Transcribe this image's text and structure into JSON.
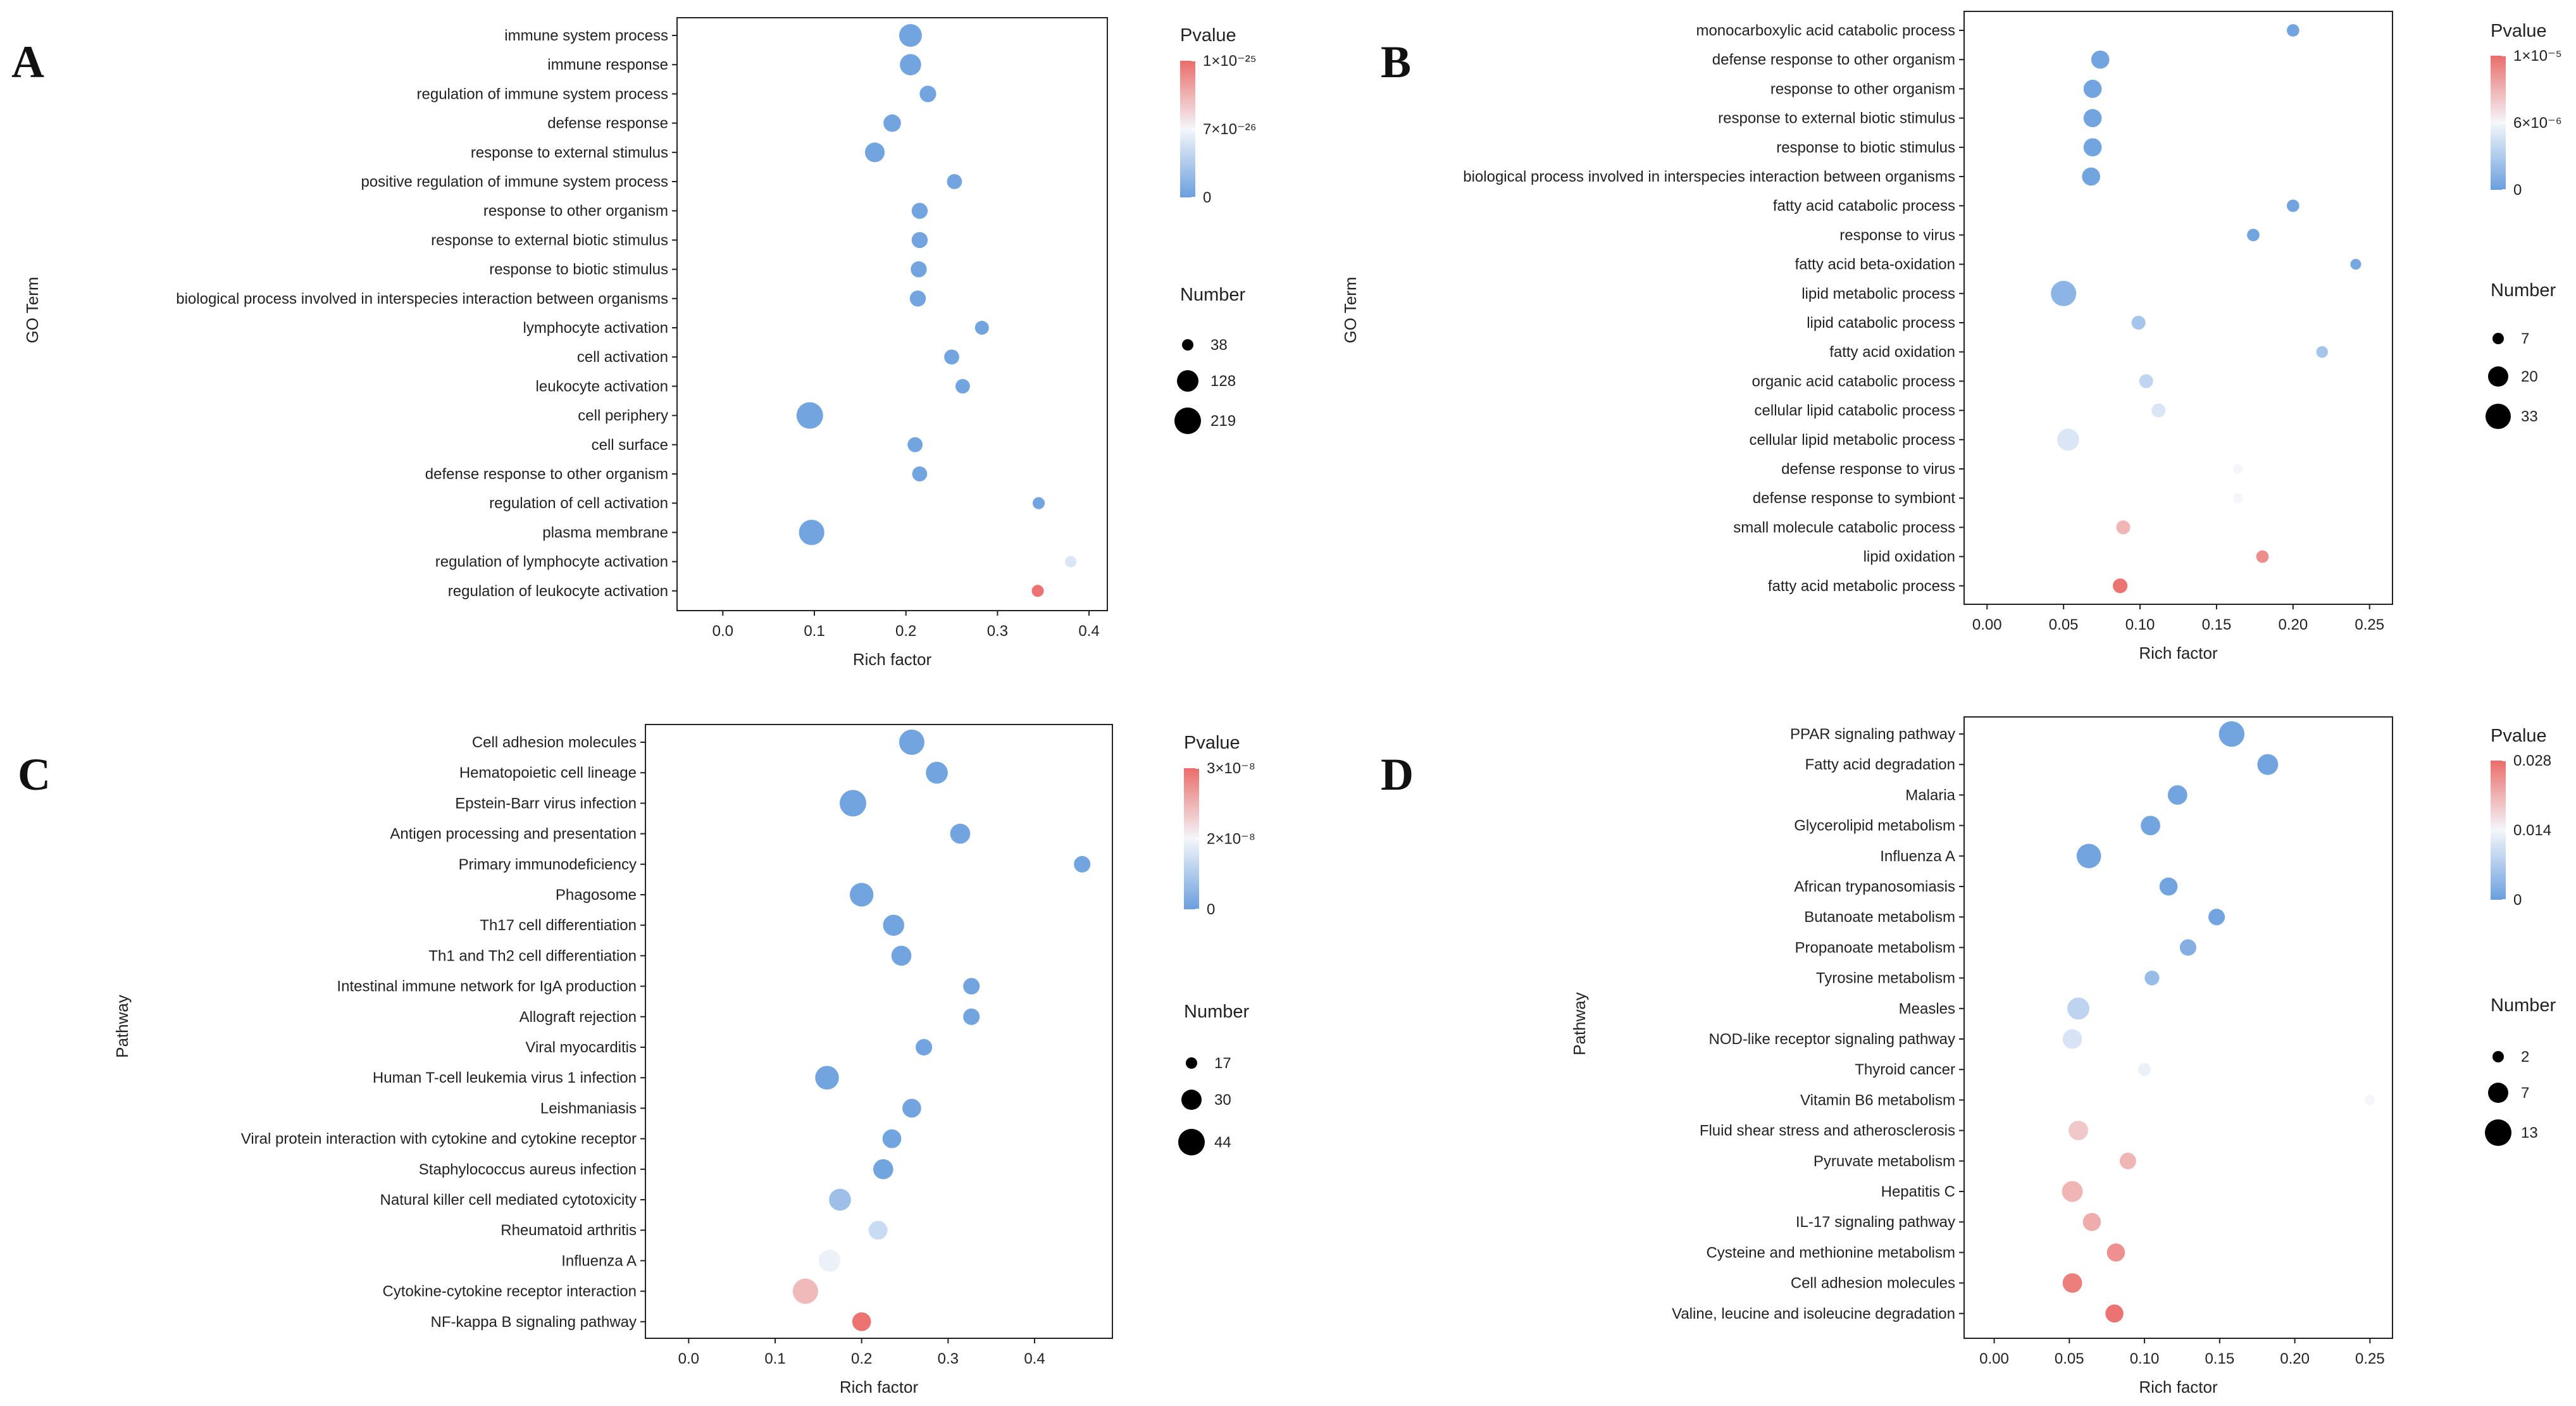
{
  "chart_data": [
    {
      "panel": "A",
      "type": "scatter",
      "xlabel": "Rich factor",
      "ylabel": "GO Term",
      "xlim": [
        -0.05,
        0.42
      ],
      "xticks": [
        0.0,
        0.1,
        0.2,
        0.3,
        0.4
      ],
      "xtick_labels": [
        "0.0",
        "0.1",
        "0.2",
        "0.3",
        "0.4"
      ],
      "color_title": "Pvalue",
      "color_tick_labels": [
        "1×10⁻²⁵",
        "7×10⁻²⁶",
        "0"
      ],
      "color_range": [
        0,
        1e-25
      ],
      "size_title": "Number",
      "size_legend": [
        38,
        128,
        219
      ],
      "terms": [
        "immune system process",
        "immune response",
        "regulation of immune system process",
        "defense response",
        "response to external stimulus",
        "positive regulation of immune system process",
        "response to other organism",
        "response to external biotic stimulus",
        "response to biotic stimulus",
        "biological process involved in interspecies interaction between organisms",
        "lymphocyte activation",
        "cell activation",
        "leukocyte activation",
        "cell periphery",
        "cell surface",
        "defense response to other organism",
        "regulation of cell activation",
        "plasma membrane",
        "regulation of lymphocyte activation",
        "regulation of leukocyte activation"
      ],
      "rich_factor": [
        0.205,
        0.205,
        0.224,
        0.185,
        0.166,
        0.253,
        0.215,
        0.215,
        0.214,
        0.213,
        0.283,
        0.25,
        0.262,
        0.095,
        0.21,
        0.215,
        0.345,
        0.097,
        0.38,
        0.344
      ],
      "number": [
        160,
        140,
        85,
        95,
        120,
        70,
        80,
        80,
        80,
        80,
        60,
        70,
        65,
        219,
        70,
        70,
        45,
        200,
        40,
        45
      ],
      "pvalue": [
        0,
        0,
        0,
        0,
        0,
        0,
        0,
        0,
        0,
        0,
        0,
        0,
        0,
        0,
        0,
        0,
        0,
        0,
        4e-26,
        1e-25
      ]
    },
    {
      "panel": "B",
      "type": "scatter",
      "xlabel": "Rich factor",
      "ylabel": "GO Term",
      "xlim": [
        -0.015,
        0.265
      ],
      "xticks": [
        0.0,
        0.05,
        0.1,
        0.15,
        0.2,
        0.25
      ],
      "xtick_labels": [
        "0.00",
        "0.05",
        "0.10",
        "0.15",
        "0.20",
        "0.25"
      ],
      "color_title": "Pvalue",
      "color_tick_labels": [
        "1×10⁻⁵",
        "6×10⁻⁶",
        "0"
      ],
      "color_range": [
        0,
        1e-05
      ],
      "size_title": "Number",
      "size_legend": [
        7,
        20,
        33
      ],
      "terms": [
        "monocarboxylic acid catabolic process",
        "defense response to other organism",
        "response to other organism",
        "response to external biotic stimulus",
        "response to biotic stimulus",
        "biological process involved in interspecies interaction between organisms",
        "fatty acid catabolic process",
        "response to virus",
        "fatty acid beta-oxidation",
        "lipid metabolic process",
        "lipid catabolic process",
        "fatty acid oxidation",
        "organic acid catabolic process",
        "cellular lipid catabolic process",
        "cellular lipid metabolic process",
        "defense response to virus",
        "defense response to symbiont",
        "small molecule catabolic process",
        "lipid oxidation",
        "fatty acid metabolic process"
      ],
      "rich_factor": [
        0.2,
        0.074,
        0.069,
        0.069,
        0.069,
        0.068,
        0.2,
        0.174,
        0.241,
        0.05,
        0.099,
        0.219,
        0.104,
        0.112,
        0.053,
        0.164,
        0.164,
        0.089,
        0.18,
        0.087
      ],
      "number": [
        8,
        17,
        17,
        17,
        17,
        17,
        8,
        8,
        6,
        33,
        10,
        7,
        10,
        10,
        25,
        5,
        5,
        10,
        8,
        11
      ],
      "pvalue": [
        0,
        0,
        0,
        0,
        0,
        0,
        0,
        0,
        2e-07,
        1e-06,
        2e-06,
        2e-06,
        3e-06,
        4e-06,
        4e-06,
        5e-06,
        5e-06,
        7.5e-06,
        9e-06,
        1e-05
      ]
    },
    {
      "panel": "C",
      "type": "scatter",
      "xlabel": "Rich factor",
      "ylabel": "Pathway",
      "xlim": [
        -0.05,
        0.49
      ],
      "xticks": [
        0.0,
        0.1,
        0.2,
        0.3,
        0.4
      ],
      "xtick_labels": [
        "0.0",
        "0.1",
        "0.2",
        "0.3",
        "0.4"
      ],
      "color_title": "Pvalue",
      "color_tick_labels": [
        "3×10⁻⁸",
        "2×10⁻⁸",
        "0"
      ],
      "color_range": [
        0,
        3e-08
      ],
      "size_title": "Number",
      "size_legend": [
        17,
        30,
        44
      ],
      "terms": [
        "Cell adhesion molecules",
        "Hematopoietic cell lineage",
        "Epstein-Barr virus infection",
        "Antigen processing and presentation",
        "Primary immunodeficiency",
        "Phagosome",
        "Th17 cell differentiation",
        "Th1 and Th2 cell differentiation",
        "Intestinal immune network for IgA production",
        "Allograft rejection",
        "Viral myocarditis",
        "Human T-cell leukemia virus 1 infection",
        "Leishmaniasis",
        "Viral protein interaction with cytokine and cytokine receptor",
        "Staphylococcus aureus infection",
        "Natural killer cell mediated cytotoxicity",
        "Rheumatoid arthritis",
        "Influenza A",
        "Cytokine-cytokine receptor interaction",
        "NF-kappa B signaling pathway"
      ],
      "rich_factor": [
        0.258,
        0.287,
        0.19,
        0.314,
        0.455,
        0.2,
        0.237,
        0.246,
        0.327,
        0.327,
        0.272,
        0.16,
        0.258,
        0.235,
        0.225,
        0.175,
        0.219,
        0.163,
        0.135,
        0.2
      ],
      "number": [
        40,
        30,
        44,
        25,
        17,
        35,
        28,
        25,
        17,
        17,
        17,
        35,
        22,
        22,
        25,
        30,
        22,
        30,
        40,
        22
      ],
      "pvalue": [
        0,
        0,
        0,
        0,
        0,
        0,
        0,
        0,
        0,
        0,
        0,
        0,
        0,
        0,
        0,
        5e-09,
        1e-08,
        1.4e-08,
        2.2e-08,
        3e-08
      ]
    },
    {
      "panel": "D",
      "type": "scatter",
      "xlabel": "Rich factor",
      "ylabel": "Pathway",
      "xlim": [
        -0.02,
        0.265
      ],
      "xticks": [
        0.0,
        0.05,
        0.1,
        0.15,
        0.2,
        0.25
      ],
      "xtick_labels": [
        "0.00",
        "0.05",
        "0.10",
        "0.15",
        "0.20",
        "0.25"
      ],
      "color_title": "Pvalue",
      "color_tick_labels": [
        "0.028",
        "0.014",
        "0"
      ],
      "color_range": [
        0,
        0.028
      ],
      "size_title": "Number",
      "size_legend": [
        2,
        7,
        13
      ],
      "terms": [
        "PPAR signaling pathway",
        "Fatty acid degradation",
        "Malaria",
        "Glycerolipid metabolism",
        "Influenza A",
        "African trypanosomiasis",
        "Butanoate metabolism",
        "Propanoate metabolism",
        "Tyrosine metabolism",
        "Measles",
        "NOD-like receptor signaling pathway",
        "Thyroid cancer",
        "Vitamin B6 metabolism",
        "Fluid shear stress and atherosclerosis",
        "Pyruvate metabolism",
        "Hepatitis C",
        "IL-17 signaling pathway",
        "Cysteine and methionine metabolism",
        "Cell adhesion molecules",
        "Valine, leucine and isoleucine degradation"
      ],
      "rich_factor": [
        0.158,
        0.182,
        0.122,
        0.104,
        0.063,
        0.116,
        0.148,
        0.129,
        0.105,
        0.056,
        0.052,
        0.1,
        0.25,
        0.056,
        0.089,
        0.052,
        0.065,
        0.081,
        0.052,
        0.08
      ],
      "number": [
        12,
        8,
        7,
        7,
        11,
        6,
        5,
        5,
        4,
        9,
        7,
        3,
        2,
        7,
        5,
        8,
        6,
        6,
        7,
        6
      ],
      "pvalue": [
        0,
        0,
        0,
        0,
        0,
        0,
        0,
        0.002,
        0.004,
        0.008,
        0.011,
        0.013,
        0.014,
        0.019,
        0.021,
        0.021,
        0.022,
        0.025,
        0.027,
        0.028
      ]
    }
  ]
}
